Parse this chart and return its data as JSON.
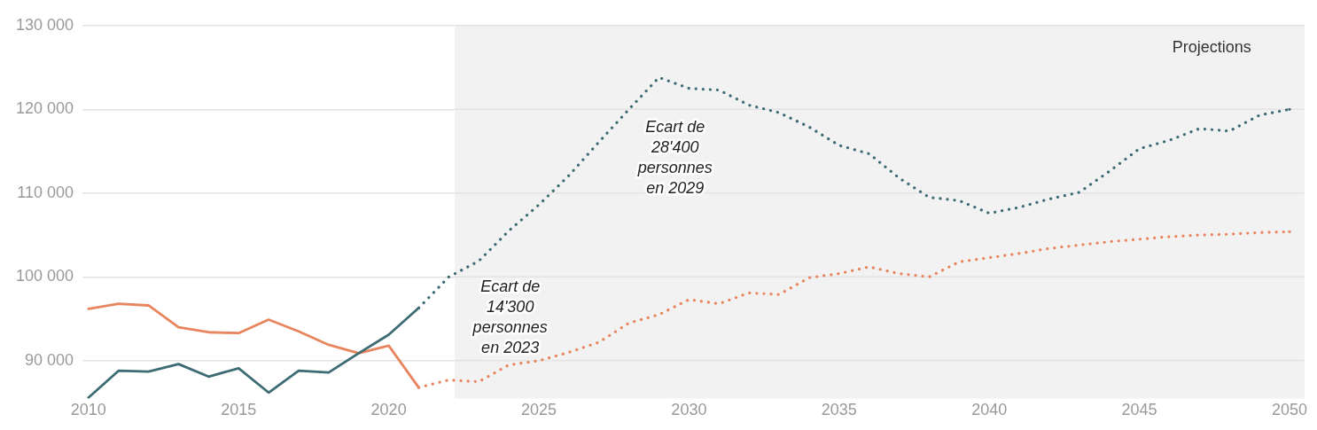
{
  "chart_data": {
    "type": "line",
    "series": [
      {
        "color": "#3d6b73",
        "line_style": "solid",
        "x": [
          2010,
          2011,
          2012,
          2013,
          2014,
          2015,
          2016,
          2017,
          2018,
          2019,
          2020,
          2021
        ],
        "values": [
          85600,
          88800,
          88700,
          89600,
          88100,
          89100,
          86200,
          88800,
          88600,
          90900,
          93100,
          96300
        ]
      },
      {
        "color": "#e8845e",
        "line_style": "solid",
        "x": [
          2010,
          2011,
          2012,
          2013,
          2014,
          2015,
          2016,
          2017,
          2018,
          2019,
          2020,
          2021
        ],
        "values": [
          96200,
          96800,
          96600,
          94000,
          93400,
          93300,
          94900,
          93500,
          91900,
          90900,
          91800,
          86800
        ]
      },
      {
        "color": "#3d6b73",
        "line_style": "dotted",
        "x": [
          2021,
          2022,
          2023,
          2024,
          2025,
          2026,
          2027,
          2028,
          2029,
          2030,
          2031,
          2032,
          2033,
          2034,
          2035,
          2036,
          2037,
          2038,
          2039,
          2040,
          2041,
          2042,
          2043,
          2044,
          2045,
          2046,
          2047,
          2048,
          2049,
          2050
        ],
        "values": [
          96300,
          100000,
          101900,
          105500,
          108600,
          112100,
          116100,
          120000,
          123800,
          122500,
          122300,
          120500,
          119600,
          117900,
          115700,
          114700,
          111800,
          109500,
          109100,
          107600,
          108300,
          109300,
          110100,
          112600,
          115300,
          116300,
          117700,
          117400,
          119300,
          120000
        ]
      },
      {
        "color": "#e8845e",
        "line_style": "dotted",
        "x": [
          2021,
          2022,
          2023,
          2024,
          2025,
          2026,
          2027,
          2028,
          2029,
          2030,
          2031,
          2032,
          2033,
          2034,
          2035,
          2036,
          2037,
          2038,
          2039,
          2040,
          2041,
          2042,
          2043,
          2044,
          2045,
          2046,
          2047,
          2048,
          2049,
          2050
        ],
        "values": [
          86800,
          87700,
          87500,
          89500,
          90000,
          91000,
          92200,
          94500,
          95500,
          97300,
          96800,
          98100,
          97900,
          99900,
          100400,
          101200,
          100400,
          100000,
          101800,
          102300,
          102800,
          103400,
          103800,
          104200,
          104500,
          104800,
          105000,
          105100,
          105300,
          105400
        ]
      }
    ],
    "xlim": [
      2009.8,
      2050.5
    ],
    "xticks": [
      2010,
      2015,
      2020,
      2025,
      2030,
      2035,
      2040,
      2045,
      2050
    ],
    "ylim": [
      85500,
      130000
    ],
    "yticks": [
      {
        "value": 90000,
        "label": "90 000"
      },
      {
        "value": 100000,
        "label": "100 000"
      },
      {
        "value": 110000,
        "label": "110 000"
      },
      {
        "value": 120000,
        "label": "120 000"
      },
      {
        "value": 130000,
        "label": "130 000"
      }
    ],
    "grid": "y",
    "legend": false,
    "marker": "none",
    "bands": [
      {
        "axis": "x",
        "from": 2022.2,
        "to": 2050.5,
        "label": "Projections",
        "color": "#f2f2f2"
      }
    ],
    "annotations": [
      "Ecart de\n28'400\npersonnes\nen 2029",
      "Ecart de\n14'300\npersonnes\nen 2023"
    ]
  }
}
